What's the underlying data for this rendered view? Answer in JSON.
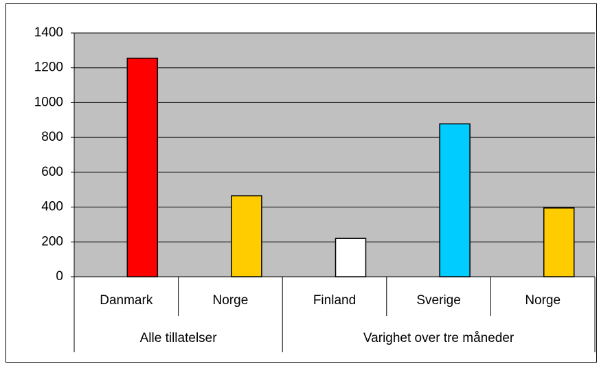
{
  "chart_data": {
    "type": "bar",
    "groups": [
      {
        "name": "Alle tillatelser",
        "categories": [
          "Danmark",
          "Norge"
        ]
      },
      {
        "name": "Varighet over tre måneder",
        "categories": [
          "Finland",
          "Sverige",
          "Norge"
        ]
      }
    ],
    "values": [
      1255,
      465,
      220,
      878,
      395
    ],
    "colors": [
      "#ff0000",
      "#ffcc00",
      "#ffffff",
      "#00ccff",
      "#ffcc00"
    ],
    "ylim": [
      0,
      1400
    ],
    "yticks": [
      0,
      200,
      400,
      600,
      800,
      1000,
      1200,
      1400
    ],
    "grid": true,
    "plot_background": "#c0c0c0"
  }
}
